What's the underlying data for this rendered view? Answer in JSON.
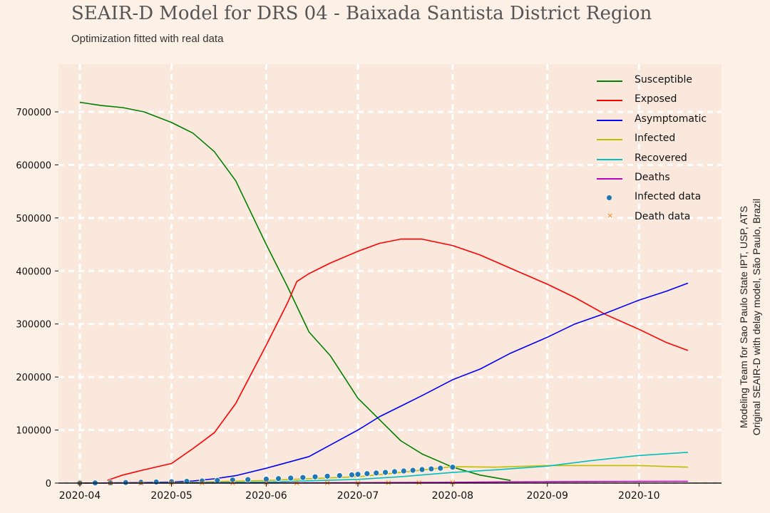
{
  "header": {
    "title": "SEAIR-D Model for DRS 04 - Baixada Santista District Region",
    "subtitle": "Optimization fitted with real data"
  },
  "side_note": {
    "line1": "Modeling Team for Sao Paulo State IPT, USP, ATS",
    "line2": "Original SEAIR-D with delay model, São Paulo, Brazil"
  },
  "chart_data": {
    "type": "line",
    "x_type": "date",
    "xlim": [
      "2020-03-25",
      "2020-10-28"
    ],
    "ylim": [
      0,
      790000
    ],
    "grid": true,
    "legend_position": "top-right",
    "x_ticks": [
      "2020-04-01",
      "2020-05-01",
      "2020-06-01",
      "2020-07-01",
      "2020-08-01",
      "2020-09-01",
      "2020-10-01"
    ],
    "x_tick_labels": [
      "2020-04",
      "2020-05",
      "2020-06",
      "2020-07",
      "2020-08",
      "2020-09",
      "2020-10"
    ],
    "y_ticks": [
      0,
      100000,
      200000,
      300000,
      400000,
      500000,
      600000,
      700000
    ],
    "y_tick_labels": [
      "0",
      "100000",
      "200000",
      "300000",
      "400000",
      "500000",
      "600000",
      "700000"
    ],
    "series": [
      {
        "name": "Susceptible",
        "color": "#008000",
        "kind": "line",
        "x": [
          "2020-04-01",
          "2020-04-08",
          "2020-04-15",
          "2020-04-22",
          "2020-05-01",
          "2020-05-08",
          "2020-05-15",
          "2020-05-22",
          "2020-06-01",
          "2020-06-08",
          "2020-06-15",
          "2020-06-22",
          "2020-07-01",
          "2020-07-08",
          "2020-07-15",
          "2020-07-22",
          "2020-08-01",
          "2020-08-10",
          "2020-08-20"
        ],
        "y": [
          718000,
          712000,
          708000,
          700000,
          680000,
          660000,
          625000,
          570000,
          450000,
          370000,
          285000,
          240000,
          160000,
          120000,
          80000,
          55000,
          30000,
          15000,
          5000
        ]
      },
      {
        "name": "Exposed",
        "color": "#ff0000",
        "kind": "line",
        "x": [
          "2020-04-10",
          "2020-04-15",
          "2020-04-22",
          "2020-05-01",
          "2020-05-08",
          "2020-05-15",
          "2020-05-22",
          "2020-06-01",
          "2020-06-08",
          "2020-06-11",
          "2020-06-15",
          "2020-06-22",
          "2020-07-01",
          "2020-07-08",
          "2020-07-15",
          "2020-07-22",
          "2020-08-01",
          "2020-08-10",
          "2020-08-20",
          "2020-09-01",
          "2020-09-10",
          "2020-09-20",
          "2020-10-01",
          "2020-10-10",
          "2020-10-17"
        ],
        "y": [
          5000,
          15000,
          25000,
          37000,
          65000,
          95000,
          150000,
          260000,
          340000,
          380000,
          395000,
          415000,
          437000,
          452000,
          460000,
          460000,
          448000,
          430000,
          405000,
          375000,
          350000,
          318000,
          290000,
          265000,
          250000
        ]
      },
      {
        "name": "Asymptomatic",
        "color": "#0000ff",
        "kind": "line",
        "x": [
          "2020-04-01",
          "2020-04-15",
          "2020-05-01",
          "2020-05-08",
          "2020-05-15",
          "2020-05-22",
          "2020-06-01",
          "2020-06-15",
          "2020-07-01",
          "2020-07-08",
          "2020-07-15",
          "2020-07-22",
          "2020-08-01",
          "2020-08-10",
          "2020-08-20",
          "2020-09-01",
          "2020-09-10",
          "2020-09-20",
          "2020-10-01",
          "2020-10-10",
          "2020-10-17"
        ],
        "y": [
          0,
          500,
          2000,
          4000,
          8000,
          14000,
          28000,
          50000,
          100000,
          125000,
          145000,
          165000,
          195000,
          215000,
          245000,
          275000,
          300000,
          320000,
          345000,
          362000,
          377000
        ]
      },
      {
        "name": "Infected",
        "color": "#bfbf00",
        "kind": "line",
        "x": [
          "2020-04-01",
          "2020-05-01",
          "2020-06-01",
          "2020-07-01",
          "2020-07-15",
          "2020-08-01",
          "2020-08-15",
          "2020-09-01",
          "2020-09-15",
          "2020-10-01",
          "2020-10-17"
        ],
        "y": [
          0,
          1000,
          5000,
          12000,
          20000,
          31000,
          30000,
          33000,
          33000,
          33000,
          30000
        ]
      },
      {
        "name": "Recovered",
        "color": "#00bfbf",
        "kind": "line",
        "x": [
          "2020-04-01",
          "2020-05-01",
          "2020-06-01",
          "2020-07-01",
          "2020-07-15",
          "2020-08-01",
          "2020-08-15",
          "2020-09-01",
          "2020-09-15",
          "2020-10-01",
          "2020-10-17"
        ],
        "y": [
          0,
          500,
          2000,
          7000,
          12000,
          20000,
          25000,
          32000,
          42000,
          52000,
          58000
        ]
      },
      {
        "name": "Deaths",
        "color": "#bf00bf",
        "kind": "line",
        "x": [
          "2020-04-01",
          "2020-05-01",
          "2020-06-01",
          "2020-07-01",
          "2020-08-01",
          "2020-08-15",
          "2020-09-01",
          "2020-09-15",
          "2020-10-01",
          "2020-10-17"
        ],
        "y": [
          0,
          100,
          300,
          800,
          1500,
          2200,
          2600,
          2900,
          3200,
          3300
        ]
      },
      {
        "name": "Infected data",
        "color": "#1f77b4",
        "kind": "scatter",
        "x": [
          "2020-04-01",
          "2020-04-06",
          "2020-04-11",
          "2020-04-16",
          "2020-04-21",
          "2020-04-26",
          "2020-05-01",
          "2020-05-06",
          "2020-05-11",
          "2020-05-16",
          "2020-05-21",
          "2020-05-26",
          "2020-06-01",
          "2020-06-05",
          "2020-06-09",
          "2020-06-13",
          "2020-06-17",
          "2020-06-21",
          "2020-06-25",
          "2020-06-29",
          "2020-07-01",
          "2020-07-04",
          "2020-07-07",
          "2020-07-10",
          "2020-07-13",
          "2020-07-16",
          "2020-07-19",
          "2020-07-22",
          "2020-07-25",
          "2020-07-28",
          "2020-08-01"
        ],
        "y": [
          100,
          300,
          600,
          1000,
          1500,
          2000,
          2600,
          3200,
          4000,
          5000,
          5800,
          6500,
          7500,
          8500,
          9500,
          10500,
          11800,
          13000,
          14200,
          15500,
          16500,
          17800,
          19000,
          20200,
          21500,
          22800,
          24000,
          25500,
          26800,
          28000,
          30000
        ]
      },
      {
        "name": "Death data",
        "color": "#ff7f0e",
        "kind": "x-marker",
        "x": [
          "2020-04-01",
          "2020-04-11",
          "2020-04-21",
          "2020-05-01",
          "2020-05-11",
          "2020-05-21",
          "2020-06-01",
          "2020-06-11",
          "2020-06-21",
          "2020-07-01",
          "2020-07-11",
          "2020-07-21",
          "2020-08-01"
        ],
        "y": [
          5,
          20,
          40,
          70,
          110,
          180,
          260,
          350,
          450,
          560,
          680,
          800,
          950
        ]
      }
    ]
  }
}
